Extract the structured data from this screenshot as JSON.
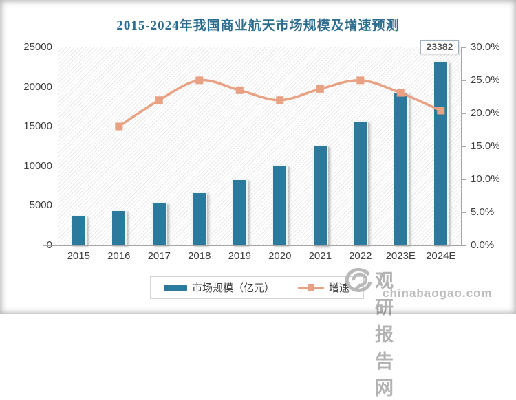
{
  "title": "2015-2024年我国商业航天市场规模及增速预测",
  "chart_data": {
    "type": "bar",
    "subtype": "combo-bar-line-dual-axis",
    "categories": [
      "2015",
      "2016",
      "2017",
      "2018",
      "2019",
      "2020",
      "2021",
      "2022",
      "2023E",
      "2024E"
    ],
    "series": [
      {
        "name": "市场规模（亿元）",
        "type": "bar",
        "axis": "left",
        "color": "#2b7a9e",
        "values": [
          3764,
          4440,
          5420,
          6775,
          8365,
          10200,
          12625,
          15775,
          19420,
          23382
        ]
      },
      {
        "name": "增速",
        "type": "line",
        "axis": "right",
        "color": "#e9a184",
        "values_percent": [
          null,
          18.0,
          22.0,
          25.0,
          23.5,
          22.0,
          23.7,
          25.0,
          23.1,
          20.4
        ]
      }
    ],
    "left_axis": {
      "min": 0,
      "max": 25000,
      "ticks": [
        "25000",
        "20000",
        "15000",
        "10000",
        "5000",
        "0"
      ]
    },
    "right_axis": {
      "min": 0,
      "max": 30,
      "ticks": [
        "30.0%",
        "25.0%",
        "20.0%",
        "15.0%",
        "10.0%",
        "5.0%",
        "0.0%"
      ]
    },
    "data_labels": {
      "category": "2024E",
      "text": "23382"
    },
    "legend_position": "bottom",
    "grid": false,
    "plot_background": "diagonal-hatch"
  },
  "colors": {
    "bar": "#2b7a9e",
    "line": "#e9a184",
    "title": "#2d6e90",
    "axis_text": "#404040",
    "axis_line": "#a6a6a6",
    "watermark": "#b3b3b3"
  },
  "watermark": {
    "site_name": "观研报告网",
    "site_url": "chinabaogao.com"
  }
}
